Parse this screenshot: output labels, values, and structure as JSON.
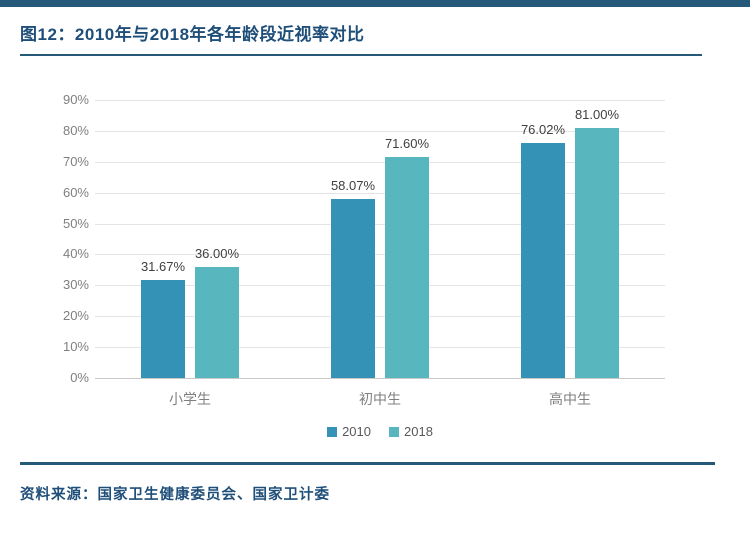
{
  "header": {
    "title": "图12：2010年与2018年各年龄段近视率对比"
  },
  "chart_data": {
    "type": "bar",
    "title": "图12：2010年与2018年各年龄段近视率对比",
    "categories": [
      "小学生",
      "初中生",
      "高中生"
    ],
    "series": [
      {
        "name": "2010",
        "color": "#3392B5",
        "values": [
          31.67,
          58.07,
          76.02
        ],
        "labels": [
          "31.67%",
          "58.07%",
          "76.02%"
        ]
      },
      {
        "name": "2018",
        "color": "#58B6BE",
        "values": [
          36.0,
          71.6,
          81.0
        ],
        "labels": [
          "36.00%",
          "71.60%",
          "81.00%"
        ]
      }
    ],
    "xlabel": "",
    "ylabel": "",
    "ylim": [
      0,
      90
    ],
    "ytick_step": 10,
    "ytick_suffix": "%",
    "grid": true,
    "legend_position": "bottom"
  },
  "footer": {
    "source": "资料来源：国家卫生健康委员会、国家卫计委"
  },
  "colors": {
    "navy_line": "#26587A",
    "title_text": "#1F4E79",
    "axis_text": "#7F7F7F",
    "label_text": "#404040",
    "gridline": "#E4E4E4"
  }
}
